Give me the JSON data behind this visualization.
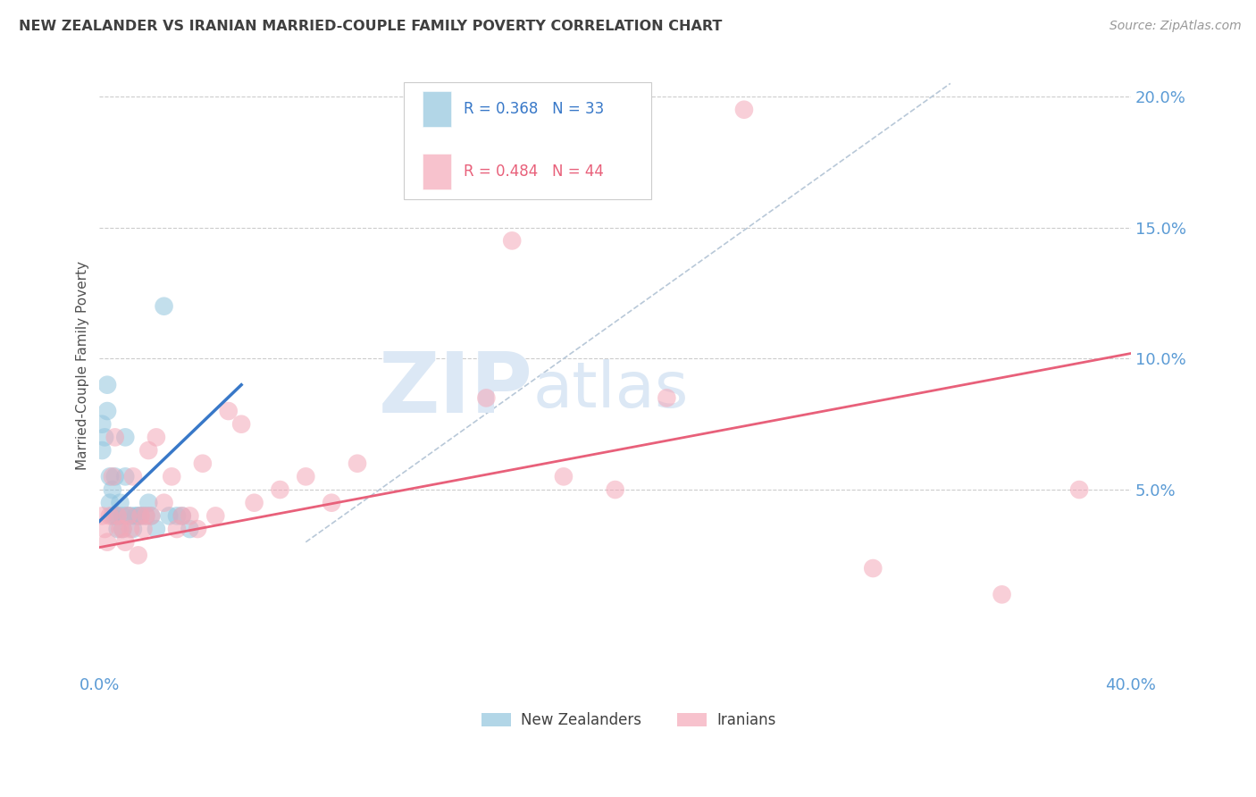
{
  "title": "NEW ZEALANDER VS IRANIAN MARRIED-COUPLE FAMILY POVERTY CORRELATION CHART",
  "source": "Source: ZipAtlas.com",
  "ylabel": "Married-Couple Family Poverty",
  "xlim": [
    0.0,
    0.4
  ],
  "ylim": [
    -0.02,
    0.215
  ],
  "yticks": [
    0.05,
    0.1,
    0.15,
    0.2
  ],
  "ytick_labels": [
    "5.0%",
    "10.0%",
    "15.0%",
    "20.0%"
  ],
  "xticks": [
    0.0,
    0.05,
    0.1,
    0.15,
    0.2,
    0.25,
    0.3,
    0.35,
    0.4
  ],
  "xtick_labels": [
    "0.0%",
    "",
    "",
    "",
    "",
    "",
    "",
    "",
    "40.0%"
  ],
  "legend_label1": "New Zealanders",
  "legend_label2": "Iranians",
  "R1": 0.368,
  "N1": 33,
  "R2": 0.484,
  "N2": 44,
  "color1": "#92C5DE",
  "color2": "#F4A8B8",
  "trendline1_x": [
    0.0,
    0.055
  ],
  "trendline1_y": [
    0.038,
    0.09
  ],
  "trendline2_x": [
    0.0,
    0.4
  ],
  "trendline2_y": [
    0.028,
    0.102
  ],
  "refline_x": [
    0.08,
    0.33
  ],
  "refline_y": [
    0.03,
    0.205
  ],
  "nz_x": [
    0.001,
    0.001,
    0.002,
    0.003,
    0.003,
    0.004,
    0.004,
    0.005,
    0.005,
    0.006,
    0.006,
    0.007,
    0.007,
    0.008,
    0.009,
    0.009,
    0.01,
    0.01,
    0.011,
    0.012,
    0.013,
    0.014,
    0.015,
    0.016,
    0.018,
    0.019,
    0.02,
    0.022,
    0.025,
    0.027,
    0.03,
    0.032,
    0.035
  ],
  "nz_y": [
    0.065,
    0.075,
    0.07,
    0.08,
    0.09,
    0.045,
    0.055,
    0.04,
    0.05,
    0.04,
    0.055,
    0.04,
    0.035,
    0.045,
    0.035,
    0.04,
    0.055,
    0.07,
    0.04,
    0.04,
    0.035,
    0.04,
    0.04,
    0.04,
    0.04,
    0.045,
    0.04,
    0.035,
    0.12,
    0.04,
    0.04,
    0.04,
    0.035
  ],
  "ir_x": [
    0.001,
    0.002,
    0.003,
    0.004,
    0.005,
    0.006,
    0.007,
    0.008,
    0.009,
    0.01,
    0.011,
    0.012,
    0.013,
    0.015,
    0.016,
    0.017,
    0.018,
    0.019,
    0.02,
    0.022,
    0.025,
    0.028,
    0.03,
    0.032,
    0.035,
    0.038,
    0.04,
    0.045,
    0.05,
    0.055,
    0.06,
    0.07,
    0.08,
    0.09,
    0.1,
    0.15,
    0.16,
    0.18,
    0.2,
    0.22,
    0.25,
    0.3,
    0.35,
    0.38
  ],
  "ir_y": [
    0.04,
    0.035,
    0.03,
    0.04,
    0.055,
    0.07,
    0.04,
    0.035,
    0.035,
    0.03,
    0.04,
    0.035,
    0.055,
    0.025,
    0.04,
    0.035,
    0.04,
    0.065,
    0.04,
    0.07,
    0.045,
    0.055,
    0.035,
    0.04,
    0.04,
    0.035,
    0.06,
    0.04,
    0.08,
    0.075,
    0.045,
    0.05,
    0.055,
    0.045,
    0.06,
    0.085,
    0.145,
    0.055,
    0.05,
    0.085,
    0.195,
    0.02,
    0.01,
    0.05
  ],
  "background_color": "#ffffff",
  "grid_color": "#cccccc",
  "axis_color": "#5b9bd5",
  "title_color": "#404040"
}
